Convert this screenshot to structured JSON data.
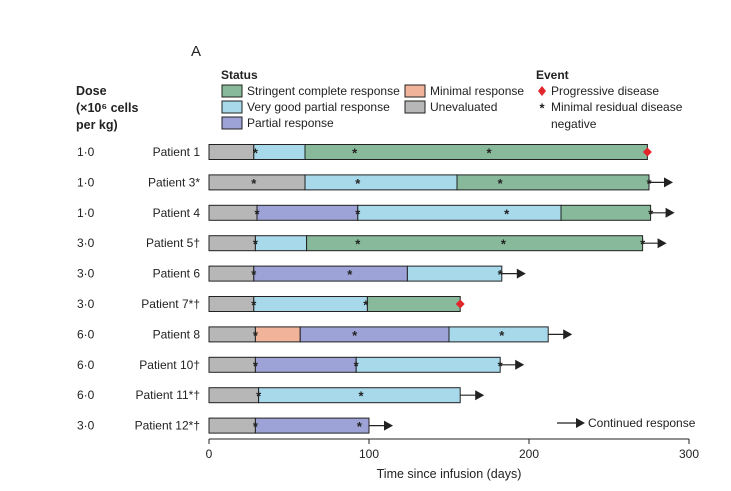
{
  "panel_label": "A",
  "colors": {
    "stringent_complete": "#87b99a",
    "very_good_partial": "#a7d9ea",
    "partial": "#9da3d6",
    "minimal": "#f2b39b",
    "unevaluated": "#b7b7b7",
    "progressive_marker": "#e0262b",
    "outline": "#222222"
  },
  "chart_data": {
    "type": "swimmer",
    "title": "A",
    "xlabel": "Time since infusion (days)",
    "xlim": [
      0,
      300
    ],
    "xticks": [
      0,
      100,
      200,
      300
    ],
    "dose_header": [
      "Dose",
      "(×10⁶ cells",
      "per kg)"
    ],
    "legend": {
      "status_title": "Status",
      "status_entries": [
        {
          "key": "stringent_complete",
          "label": "Stringent complete response"
        },
        {
          "key": "very_good_partial",
          "label": "Very good partial response"
        },
        {
          "key": "partial",
          "label": "Partial response"
        },
        {
          "key": "minimal",
          "label": "Minimal response"
        },
        {
          "key": "unevaluated",
          "label": "Unevaluated"
        }
      ],
      "event_title": "Event",
      "event_entries": [
        {
          "key": "progressive",
          "label": "Progressive disease"
        },
        {
          "key": "mrd_negative",
          "label": "Minimal residual disease negative"
        }
      ],
      "continued_label": "Continued response"
    },
    "patients": [
      {
        "label": "Patient 1",
        "dose": "1·0",
        "segments": [
          {
            "status": "unevaluated",
            "start": 0,
            "end": 28
          },
          {
            "status": "very_good_partial",
            "start": 28,
            "end": 60
          },
          {
            "status": "stringent_complete",
            "start": 60,
            "end": 274
          }
        ],
        "mrd": [
          29,
          91,
          175
        ],
        "progression": 274,
        "continued": false
      },
      {
        "label": "Patient 3*",
        "dose": "1·0",
        "segments": [
          {
            "status": "unevaluated",
            "start": 0,
            "end": 60
          },
          {
            "status": "very_good_partial",
            "start": 60,
            "end": 155
          },
          {
            "status": "stringent_complete",
            "start": 155,
            "end": 275
          }
        ],
        "mrd": [
          28,
          93,
          182,
          275
        ],
        "progression": null,
        "continued": true
      },
      {
        "label": "Patient 4",
        "dose": "1·0",
        "segments": [
          {
            "status": "unevaluated",
            "start": 0,
            "end": 30
          },
          {
            "status": "partial",
            "start": 30,
            "end": 93
          },
          {
            "status": "very_good_partial",
            "start": 93,
            "end": 220
          },
          {
            "status": "stringent_complete",
            "start": 220,
            "end": 276
          }
        ],
        "mrd": [
          30,
          93,
          186,
          276
        ],
        "progression": null,
        "continued": true
      },
      {
        "label": "Patient 5†",
        "dose": "3·0",
        "segments": [
          {
            "status": "unevaluated",
            "start": 0,
            "end": 29
          },
          {
            "status": "very_good_partial",
            "start": 29,
            "end": 61
          },
          {
            "status": "stringent_complete",
            "start": 61,
            "end": 271
          }
        ],
        "mrd": [
          29,
          93,
          184,
          271
        ],
        "progression": null,
        "continued": true
      },
      {
        "label": "Patient 6",
        "dose": "3·0",
        "segments": [
          {
            "status": "unevaluated",
            "start": 0,
            "end": 28
          },
          {
            "status": "partial",
            "start": 28,
            "end": 124
          },
          {
            "status": "very_good_partial",
            "start": 124,
            "end": 183
          }
        ],
        "mrd": [
          28,
          88,
          182
        ],
        "progression": null,
        "continued": true
      },
      {
        "label": "Patient 7*†",
        "dose": "3·0",
        "segments": [
          {
            "status": "unevaluated",
            "start": 0,
            "end": 28
          },
          {
            "status": "very_good_partial",
            "start": 28,
            "end": 99
          },
          {
            "status": "stringent_complete",
            "start": 99,
            "end": 157
          }
        ],
        "mrd": [
          28,
          98
        ],
        "progression": 157,
        "continued": false
      },
      {
        "label": "Patient 8",
        "dose": "6·0",
        "segments": [
          {
            "status": "unevaluated",
            "start": 0,
            "end": 29
          },
          {
            "status": "minimal",
            "start": 29,
            "end": 57
          },
          {
            "status": "partial",
            "start": 57,
            "end": 150
          },
          {
            "status": "very_good_partial",
            "start": 150,
            "end": 212
          }
        ],
        "mrd": [
          29,
          91,
          183
        ],
        "progression": null,
        "continued": true
      },
      {
        "label": "Patient 10†",
        "dose": "6·0",
        "segments": [
          {
            "status": "unevaluated",
            "start": 0,
            "end": 29
          },
          {
            "status": "partial",
            "start": 29,
            "end": 92
          },
          {
            "status": "very_good_partial",
            "start": 92,
            "end": 182
          }
        ],
        "mrd": [
          29,
          92,
          182
        ],
        "progression": null,
        "continued": true
      },
      {
        "label": "Patient 11*†",
        "dose": "6·0",
        "segments": [
          {
            "status": "unevaluated",
            "start": 0,
            "end": 31
          },
          {
            "status": "very_good_partial",
            "start": 31,
            "end": 157
          }
        ],
        "mrd": [
          31,
          95
        ],
        "progression": null,
        "continued": true
      },
      {
        "label": "Patient 12*†",
        "dose": "3·0",
        "segments": [
          {
            "status": "unevaluated",
            "start": 0,
            "end": 29
          },
          {
            "status": "partial",
            "start": 29,
            "end": 100
          }
        ],
        "mrd": [
          29,
          94
        ],
        "progression": null,
        "continued": true
      }
    ]
  }
}
